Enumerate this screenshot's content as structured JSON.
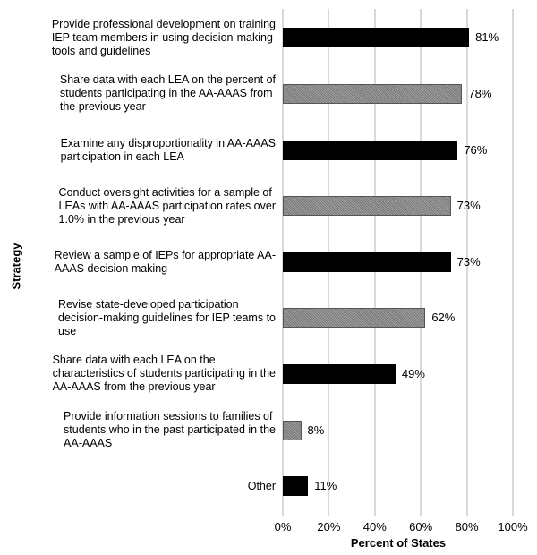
{
  "chart_data": {
    "type": "bar",
    "orientation": "horizontal",
    "xlabel": "Percent of States",
    "ylabel": "Strategy",
    "xlim": [
      0,
      100
    ],
    "xticks": [
      "0%",
      "20%",
      "40%",
      "60%",
      "80%",
      "100%"
    ],
    "grid": "vertical",
    "categories": [
      "Provide professional development on training\nIEP team members in using decision-making\ntools and guidelines",
      "Share data with each LEA on the percent of\nstudents participating in the AA-AAAS from\nthe previous year",
      "Examine any disproportionality in AA-AAAS\nparticipation in each LEA",
      "Conduct oversight activities for a sample of\nLEAs with AA-AAAS participation rates over\n1.0% in the previous year",
      "Review a sample of IEPs for appropriate AA-\nAAAS decision making",
      "Revise state-developed participation\ndecision-making guidelines for IEP teams to\nuse",
      "Share data with each LEA on the\ncharacteristics of students participating in the\nAA-AAAS from the previous year",
      "Provide information sessions to families of\nstudents who in the past participated in the\nAA-AAAS",
      "Other"
    ],
    "values": [
      81,
      78,
      76,
      73,
      73,
      62,
      49,
      8,
      11
    ],
    "data_labels": [
      "81%",
      "78%",
      "76%",
      "73%",
      "73%",
      "62%",
      "49%",
      "8%",
      "11%"
    ],
    "fills": [
      "solid",
      "pattern",
      "solid",
      "pattern",
      "solid",
      "pattern",
      "solid",
      "pattern",
      "solid"
    ],
    "colors": {
      "solid": "#000000",
      "pattern": "#8a8a8a",
      "grid": "#d9d9d9"
    }
  }
}
